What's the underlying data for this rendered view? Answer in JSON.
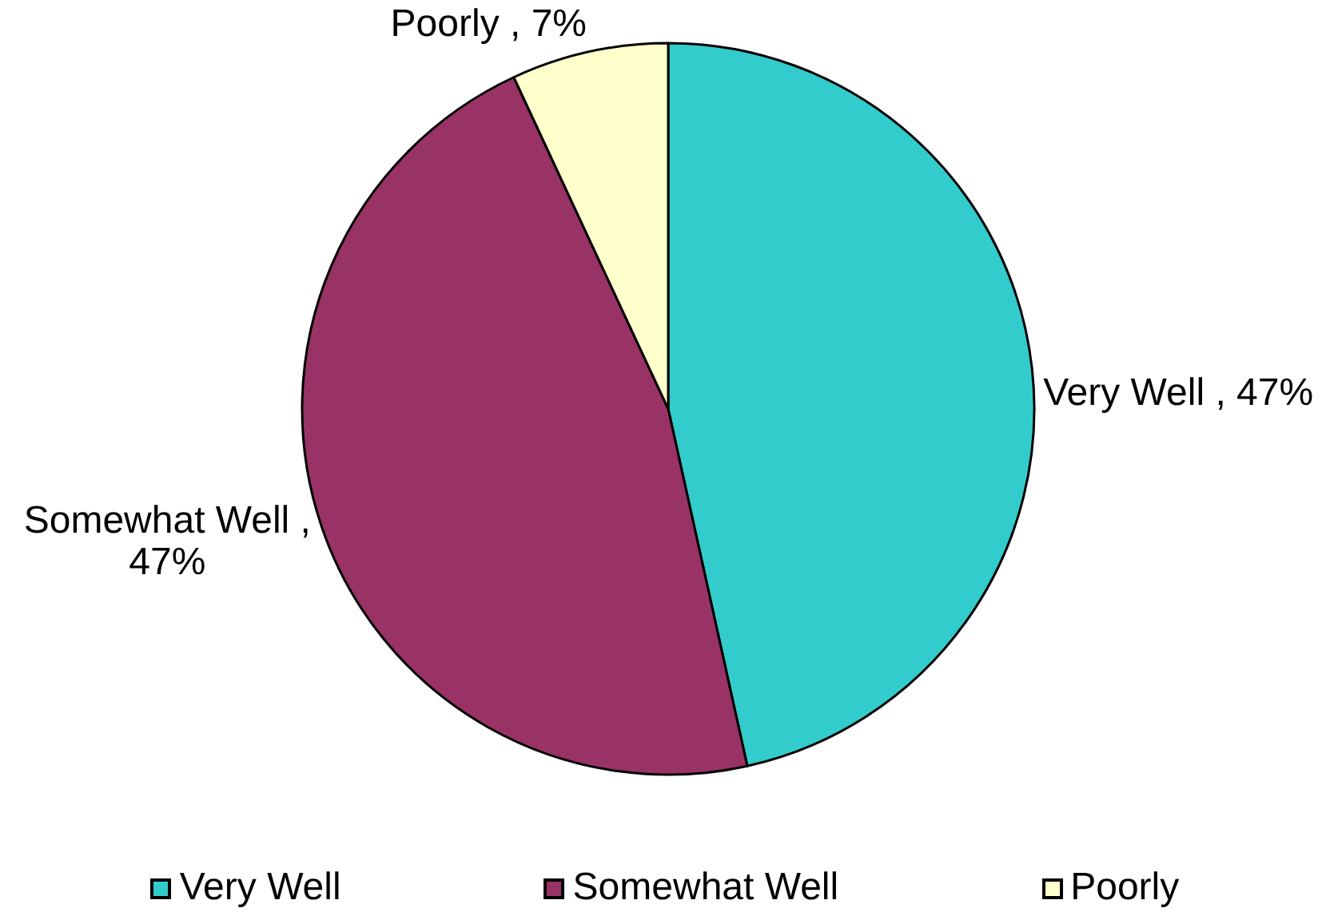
{
  "chart_data": {
    "type": "pie",
    "categories": [
      "Very Well",
      "Somewhat Well",
      "Poorly"
    ],
    "values": [
      47,
      47,
      7
    ],
    "colors": [
      "#33cccc",
      "#993366",
      "#ffffcc"
    ],
    "value_labels": [
      "Very Well , 47%",
      "Somewhat Well , 47%",
      "Poorly , 7%"
    ],
    "legend": "bottom"
  }
}
